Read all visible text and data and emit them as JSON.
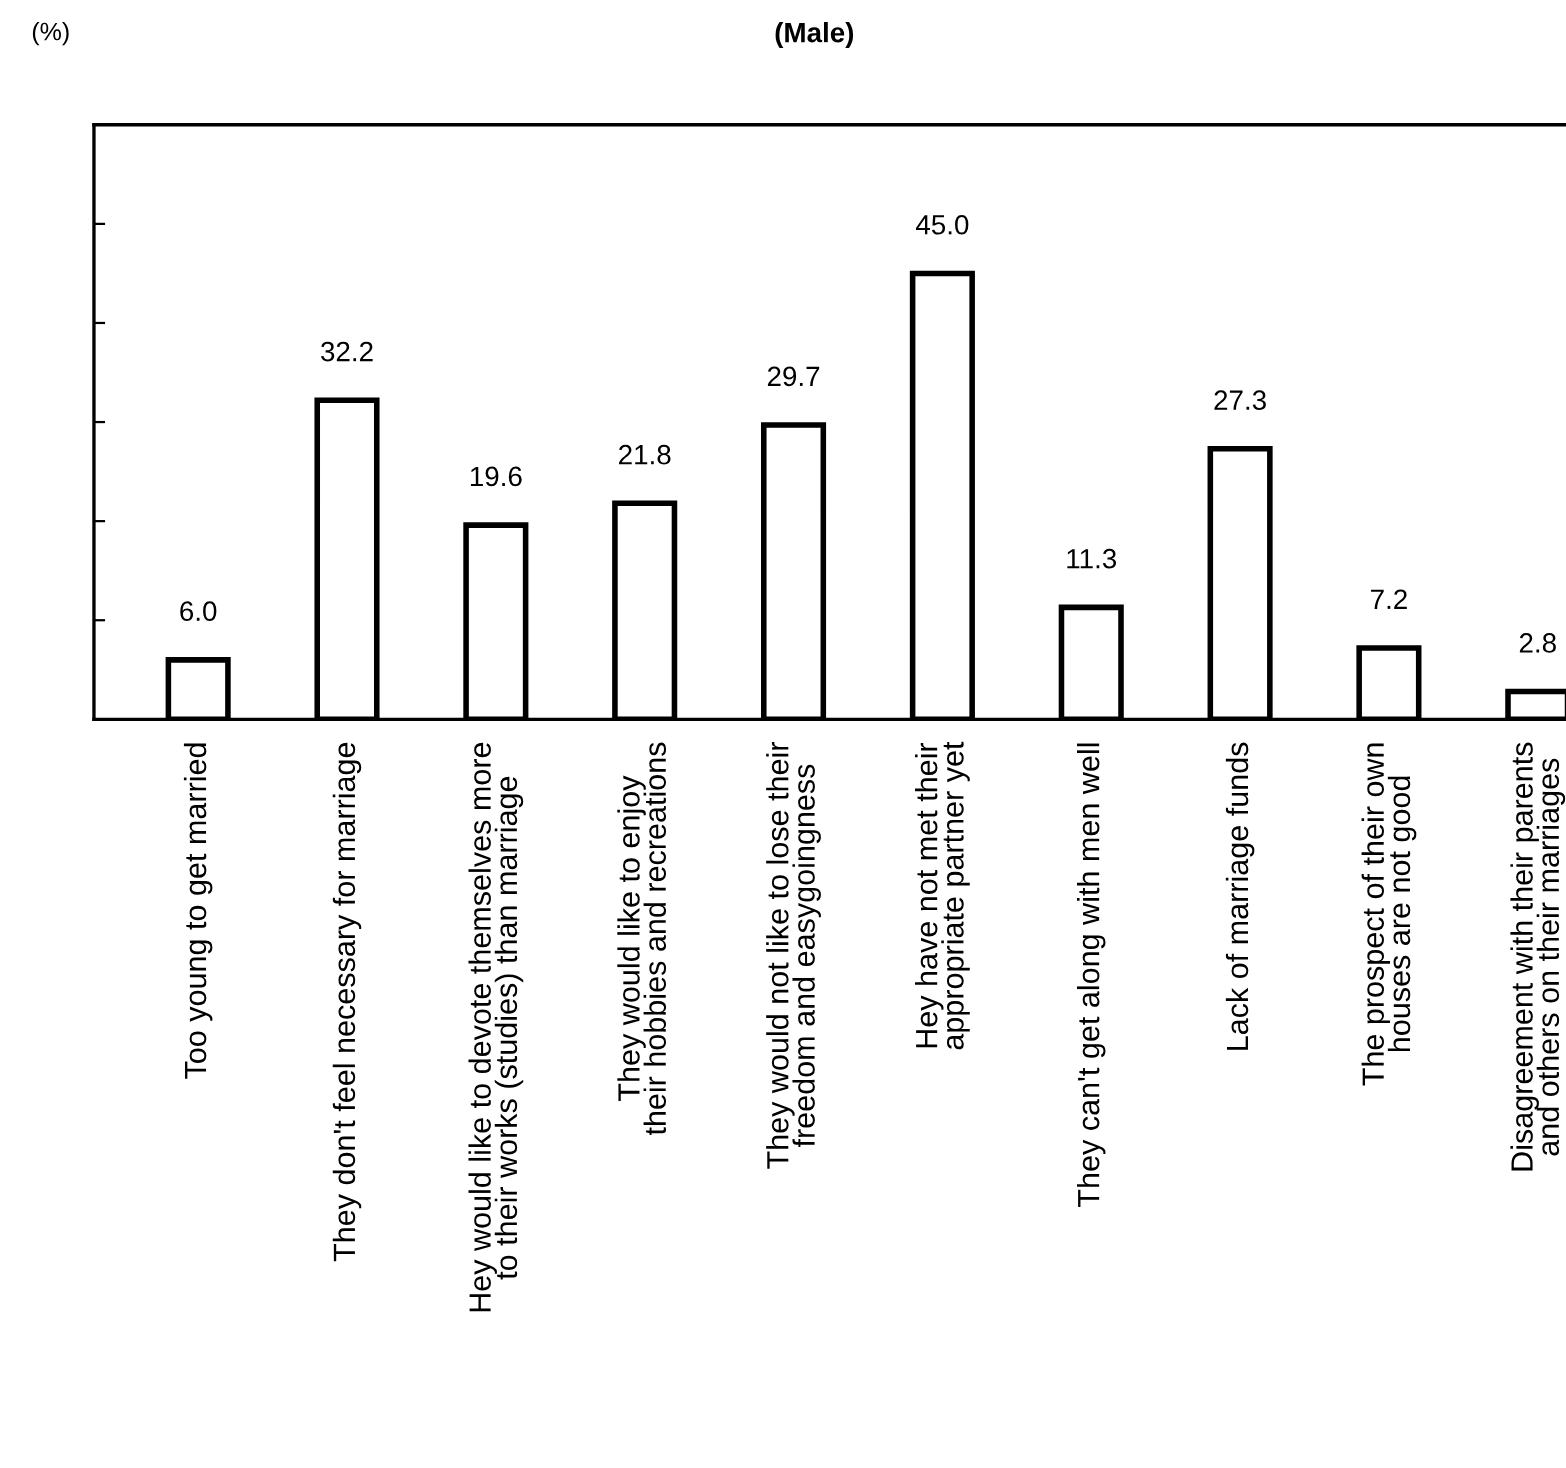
{
  "chart_data": {
    "type": "bar",
    "title": "(Male)",
    "ylabel": "(%)",
    "categories": [
      "Too young to get married",
      "They don't feel necessary for marriage",
      "Hey would like to devote themselves more\nto their works (studies) than marriage",
      "They would like to enjoy\ntheir hobbies and recreations",
      "They would not like to lose their\nfreedom and easygoingness",
      "Hey have not met their\nappropriate partner yet",
      "They can't get along with men well",
      "Lack of marriage funds",
      "The prospect of their own\nhouses are not good",
      "Disagreement with their parents\nand others on their marriages"
    ],
    "values": [
      6.0,
      32.2,
      19.6,
      21.8,
      29.7,
      45.0,
      11.3,
      27.3,
      7.2,
      2.8
    ],
    "value_labels": [
      "6.0",
      "32.2",
      "19.6",
      "21.8",
      "29.7",
      "45.0",
      "11.3",
      "27.3",
      "7.2",
      "2.8"
    ],
    "color": "#ffffff",
    "ylim": [
      0,
      60
    ],
    "yticks": [
      {
        "value": 0,
        "label": null
      },
      {
        "value": 10,
        "label": null
      },
      {
        "value": 20,
        "label": null
      },
      {
        "value": 30,
        "label": null
      },
      {
        "value": 40,
        "label": null
      },
      {
        "value": 50,
        "label": null
      },
      {
        "value": 60,
        "label": null
      }
    ],
    "tick_labels": "x",
    "grid": false,
    "legend": false
  }
}
